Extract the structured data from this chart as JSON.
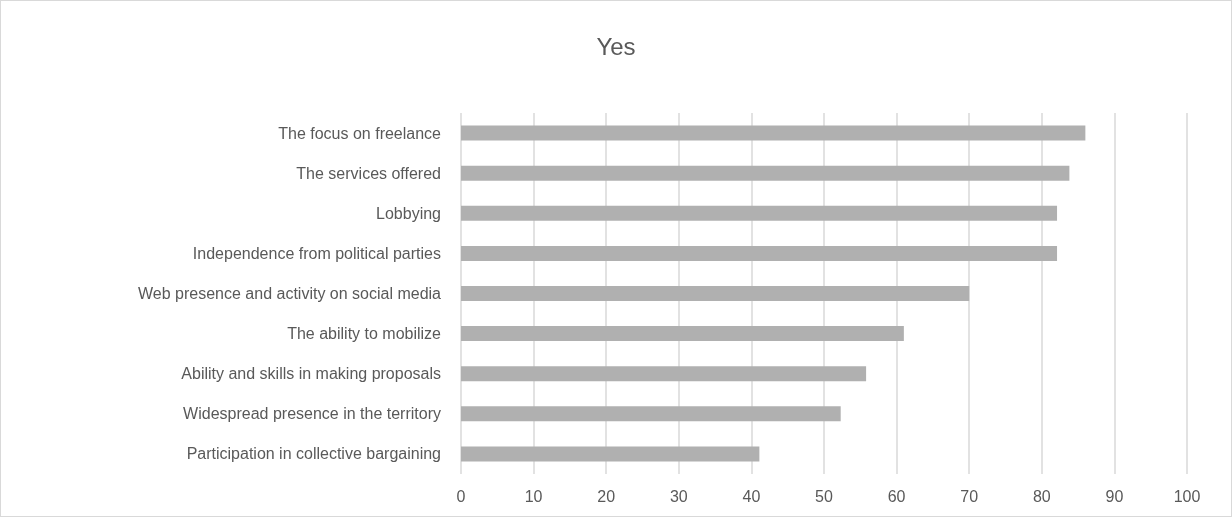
{
  "chart_data": {
    "type": "bar",
    "orientation": "horizontal",
    "title": "Yes",
    "categories": [
      "The focus on freelance",
      "The services offered",
      "Lobbying",
      "Independence from political parties",
      "Web presence and activity on social media",
      "The ability to mobilize",
      "Ability and skills in making proposals",
      "Widespread presence in the territory",
      "Participation in collective bargaining"
    ],
    "values": [
      86,
      83.8,
      82.1,
      82.1,
      70,
      61,
      55.8,
      52.3,
      41.1
    ],
    "color": "#b0b0b0",
    "xlim": [
      0,
      100
    ],
    "xticks": [
      0,
      10,
      20,
      30,
      40,
      50,
      60,
      70,
      80,
      90,
      100
    ],
    "grid": "x"
  }
}
